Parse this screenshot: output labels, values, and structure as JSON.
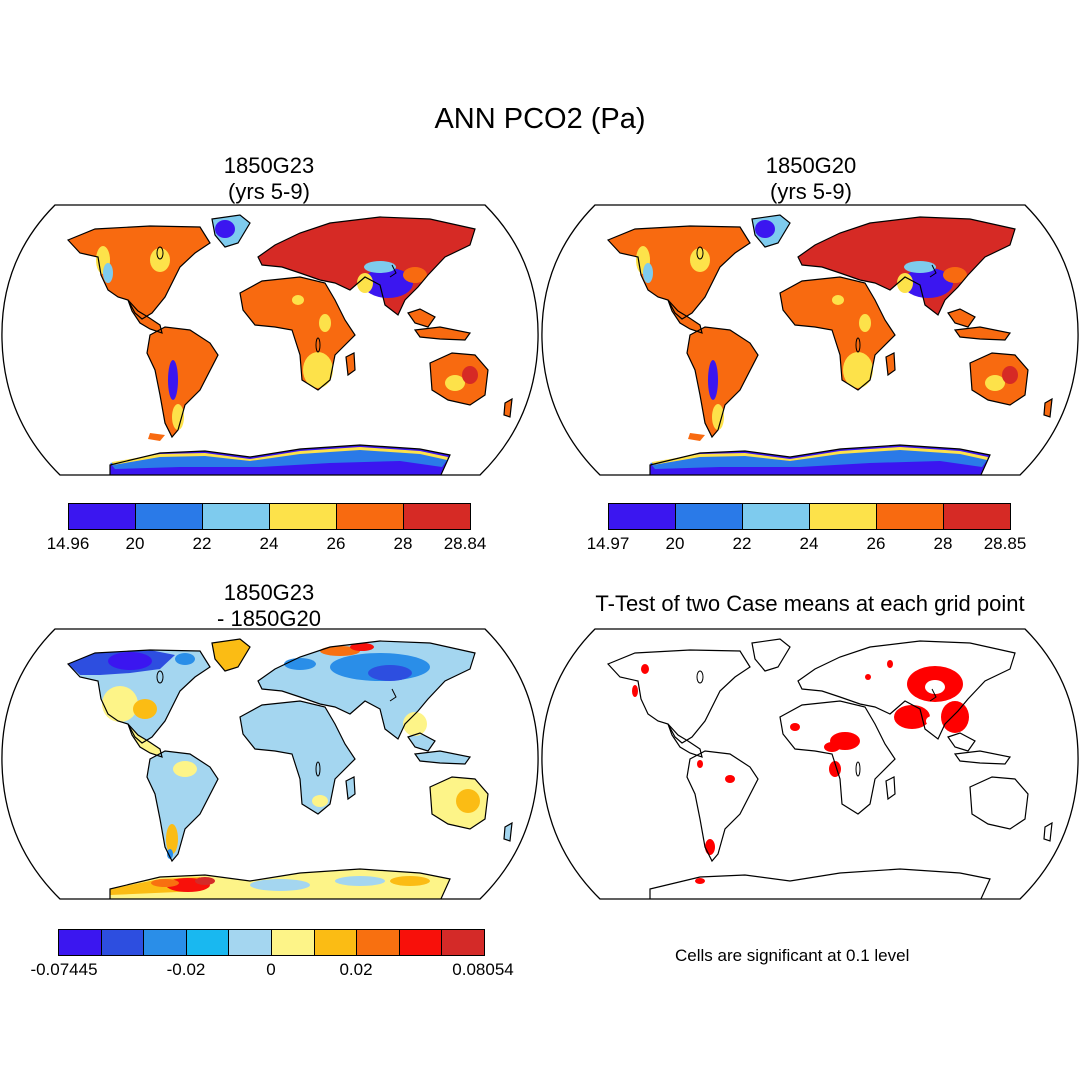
{
  "figure": {
    "title": "ANN PCO2 (Pa)",
    "note": "Cells are significant at 0.1 level"
  },
  "panels": {
    "case1": {
      "title_line1": "1850G23",
      "title_line2": "(yrs 5-9)",
      "colorbar": {
        "colors": [
          "#3b16f0",
          "#2a7ae8",
          "#7ecbee",
          "#fde24a",
          "#f86a10",
          "#d62a25"
        ],
        "labels": [
          "14.96",
          "20",
          "22",
          "24",
          "26",
          "28",
          "28.84"
        ]
      }
    },
    "case2": {
      "title_line1": "1850G20",
      "title_line2": "(yrs 5-9)",
      "colorbar": {
        "colors": [
          "#3b16f0",
          "#2a7ae8",
          "#7ecbee",
          "#fde24a",
          "#f86a10",
          "#d62a25"
        ],
        "labels": [
          "14.97",
          "20",
          "22",
          "24",
          "26",
          "28",
          "28.85"
        ]
      }
    },
    "diff": {
      "title_line1": "1850G23",
      "title_line2": "- 1850G20",
      "colorbar": {
        "colors": [
          "#3b16f0",
          "#2d4ee0",
          "#2a8ee8",
          "#19b8f0",
          "#a4d6f0",
          "#fdf488",
          "#fbbc14",
          "#f87010",
          "#f8100a",
          "#d42a28"
        ],
        "labels": [
          "-0.07445",
          "-0.02",
          "0",
          "0.02",
          "0.08054"
        ]
      }
    },
    "ttest": {
      "title_line1": "T-Test of two Case means at each grid point"
    }
  },
  "palette": {
    "land_outline": "#000000",
    "significant": "#ff0000"
  }
}
